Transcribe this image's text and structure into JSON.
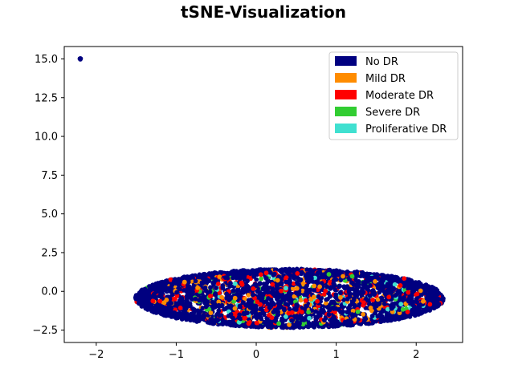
{
  "chart_data": {
    "type": "scatter",
    "title": "tSNE-Visualization",
    "xlabel": "",
    "ylabel": "",
    "xlim": [
      -2.4,
      2.58
    ],
    "ylim": [
      -3.3,
      15.8
    ],
    "x_ticks": [
      -2,
      -1,
      0,
      1,
      2
    ],
    "x_tick_labels": [
      "−2",
      "−1",
      "0",
      "1",
      "2"
    ],
    "y_ticks": [
      -2.5,
      0.0,
      2.5,
      5.0,
      7.5,
      10.0,
      12.5,
      15.0
    ],
    "y_tick_labels": [
      "−2.5",
      "0.0",
      "2.5",
      "5.0",
      "7.5",
      "10.0",
      "12.5",
      "15.0"
    ],
    "grid": false,
    "legend_position": "top-right",
    "series": [
      {
        "name": "No DR",
        "color": "#000080"
      },
      {
        "name": "Mild DR",
        "color": "#ff8c00"
      },
      {
        "name": "Moderate DR",
        "color": "#ff0000"
      },
      {
        "name": "Severe DR",
        "color": "#32cd32"
      },
      {
        "name": "Proliferative DR",
        "color": "#40e0d0"
      }
    ],
    "cluster": {
      "center_x": 0.42,
      "center_y": -0.45,
      "radius_x": 1.93,
      "radius_y": 1.9,
      "shape_note_x_range": [
        -1.55,
        2.4
      ],
      "shape_note_y_range": [
        -2.4,
        1.5
      ]
    },
    "outlier": {
      "series": "No DR",
      "x": -2.2,
      "y": 15.0
    }
  }
}
